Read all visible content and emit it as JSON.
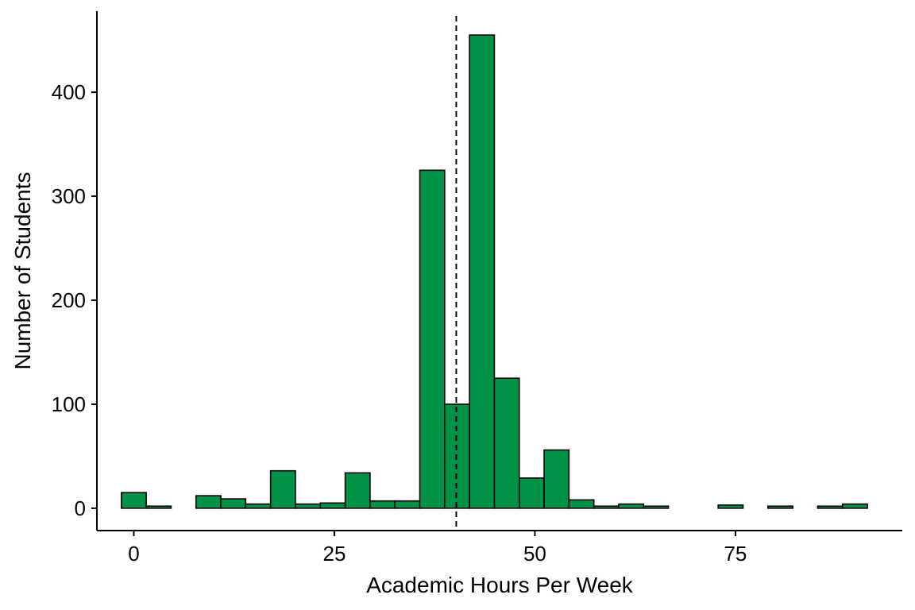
{
  "chart_data": {
    "type": "bar",
    "subtype": "histogram",
    "xlabel": "Academic Hours Per Week",
    "ylabel": "Number of Students",
    "xlim": [
      -4.6,
      95.8
    ],
    "ylim": [
      -21.5,
      478
    ],
    "xticks": [
      0,
      25,
      50,
      75
    ],
    "yticks": [
      0,
      100,
      200,
      300,
      400
    ],
    "bin_width": 3.1,
    "bin_start": -1.55,
    "bins": [
      {
        "x": 0.0,
        "count": 15
      },
      {
        "x": 3.1,
        "count": 2
      },
      {
        "x": 6.2,
        "count": 0
      },
      {
        "x": 9.3,
        "count": 12
      },
      {
        "x": 12.4,
        "count": 9
      },
      {
        "x": 15.5,
        "count": 4
      },
      {
        "x": 18.6,
        "count": 36
      },
      {
        "x": 21.7,
        "count": 4
      },
      {
        "x": 24.8,
        "count": 5
      },
      {
        "x": 27.9,
        "count": 34
      },
      {
        "x": 31.0,
        "count": 7
      },
      {
        "x": 34.1,
        "count": 7
      },
      {
        "x": 37.2,
        "count": 325
      },
      {
        "x": 40.3,
        "count": 100
      },
      {
        "x": 43.4,
        "count": 455
      },
      {
        "x": 46.5,
        "count": 125
      },
      {
        "x": 49.6,
        "count": 29
      },
      {
        "x": 52.7,
        "count": 56
      },
      {
        "x": 55.8,
        "count": 8
      },
      {
        "x": 58.9,
        "count": 2
      },
      {
        "x": 62.0,
        "count": 4
      },
      {
        "x": 65.1,
        "count": 2
      },
      {
        "x": 68.2,
        "count": 0
      },
      {
        "x": 71.3,
        "count": 0
      },
      {
        "x": 74.4,
        "count": 3
      },
      {
        "x": 77.5,
        "count": 0
      },
      {
        "x": 80.6,
        "count": 2
      },
      {
        "x": 83.7,
        "count": 0
      },
      {
        "x": 86.8,
        "count": 2
      },
      {
        "x": 89.9,
        "count": 4
      }
    ],
    "reference_line": {
      "x": 40.2,
      "style": "dashed"
    },
    "bar_color": "#009246",
    "bar_outline": "#000000",
    "grid": false,
    "legend": "none"
  }
}
